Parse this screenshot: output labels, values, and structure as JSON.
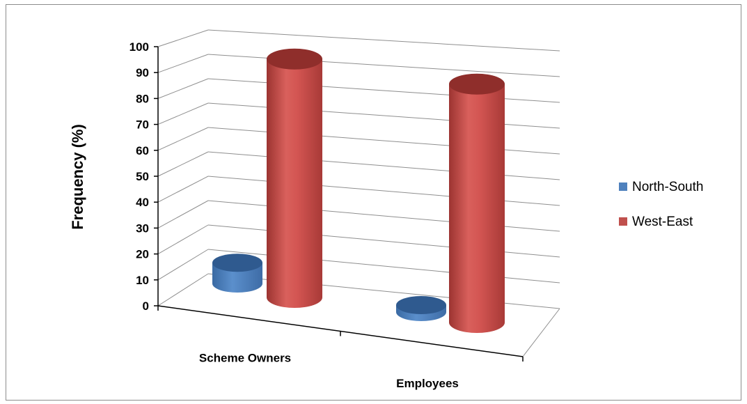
{
  "chart_data": {
    "type": "bar",
    "style": "3d-cylinder",
    "categories": [
      "Scheme Owners",
      "Employees"
    ],
    "series": [
      {
        "name": "North-South",
        "values": [
          8,
          0
        ],
        "color": "#4f81bd"
      },
      {
        "name": "West-East",
        "values": [
          92,
          92
        ],
        "color": "#c0504d"
      }
    ],
    "ylabel": "Frequency (%)",
    "xlabel": "",
    "ylim": [
      0,
      100
    ],
    "yticks": [
      "0",
      "10",
      "20",
      "30",
      "40",
      "50",
      "60",
      "70",
      "80",
      "90",
      "100"
    ],
    "grid": true,
    "legend": "right"
  }
}
